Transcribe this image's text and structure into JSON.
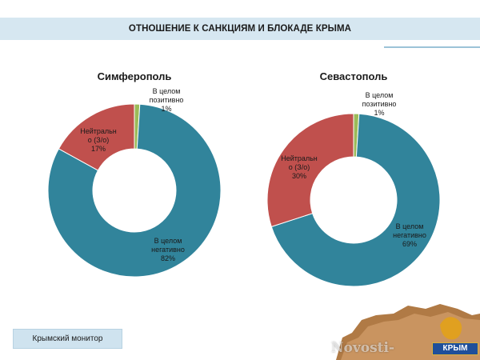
{
  "header": {
    "title": "ОТНОШЕНИЕ К САНКЦИЯМ И БЛОКАДЕ КРЫМА"
  },
  "footer": {
    "label": "Крымский монитор"
  },
  "watermark": {
    "text": "Novosti-",
    "brand": "КРЫМ"
  },
  "colors": {
    "negative": "#31849b",
    "neutral": "#c0504d",
    "positive": "#9bbb59",
    "header_bg": "#d6e7f1"
  },
  "chart_data": [
    {
      "type": "pie",
      "title": "Симферополь",
      "slices": [
        {
          "label": "В целом позитивно",
          "value": 1
        },
        {
          "label": "В целом негативно",
          "value": 82
        },
        {
          "label": "Нейтрально (З/о)",
          "value": 17
        }
      ],
      "labels": {
        "positive": [
          "В целом",
          "позитивно",
          "1%"
        ],
        "negative": [
          "В целом",
          "негативно",
          "82%"
        ],
        "neutral": [
          "Нейтральн",
          "о (З/о)",
          "17%"
        ]
      }
    },
    {
      "type": "pie",
      "title": "Севастополь",
      "slices": [
        {
          "label": "В целом позитивно",
          "value": 1
        },
        {
          "label": "В целом негативно",
          "value": 69
        },
        {
          "label": "Нейтрально (З/о)",
          "value": 30
        }
      ],
      "labels": {
        "positive": [
          "В целом",
          "позитивно",
          "1%"
        ],
        "negative": [
          "В целом",
          "негативно",
          "69%"
        ],
        "neutral": [
          "Нейтральн",
          "о (З/о)",
          "30%"
        ]
      }
    }
  ]
}
